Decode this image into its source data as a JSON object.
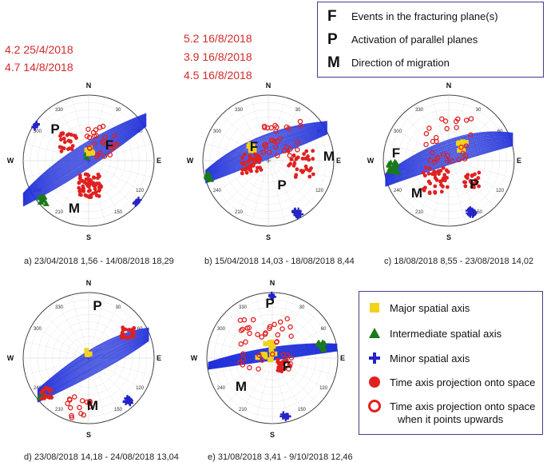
{
  "events": {
    "group1": [
      "4.2 25/4/2018",
      "4.7 14/8/2018"
    ],
    "group2": [
      "5.2 16/8/2018",
      "3.9 16/8/2018",
      "4.5 16/8/2018"
    ]
  },
  "key_legend": [
    {
      "key": "F",
      "text": "Events in the fracturing plane(s)"
    },
    {
      "key": "P",
      "text": "Activation of parallel planes"
    },
    {
      "key": "M",
      "text": "Direction of migration"
    }
  ],
  "symbol_legend": [
    {
      "text": "Major spatial axis",
      "color": "#f2d21c"
    },
    {
      "text": "Intermediate spatial axis",
      "color": "#1a7a1a"
    },
    {
      "text": "Minor spatial axis",
      "color": "#2424c8"
    },
    {
      "text": "Time axis projection onto space",
      "color": "#e02020"
    },
    {
      "text": "Time axis projection onto space",
      "text2": "when it points upwards",
      "color": "#e02020"
    }
  ],
  "compass": {
    "n": "N",
    "s": "S",
    "e": "E",
    "w": "W"
  },
  "degree_ticks": [
    "30",
    "60",
    "120",
    "150",
    "210",
    "240",
    "300",
    "330"
  ],
  "colors": {
    "fracture_planes": "#1f2fd8",
    "legend_border": "#4a3a8a",
    "event_text": "#d42a2a"
  },
  "panels": [
    {
      "id": "a",
      "caption": "a) 23/04/2018 1,56 - 14/08/2018 18,29",
      "labels": [
        {
          "t": "P"
        },
        {
          "t": "F"
        },
        {
          "t": "M"
        }
      ]
    },
    {
      "id": "b",
      "caption": "b) 15/04/2018 14,03 - 18/08/2018 8,44",
      "labels": [
        {
          "t": "F"
        },
        {
          "t": "M"
        },
        {
          "t": "P"
        }
      ]
    },
    {
      "id": "c",
      "caption": "c) 18/08/2018 8,55 - 23/08/2018 14,02",
      "labels": [
        {
          "t": "F"
        },
        {
          "t": "M"
        },
        {
          "t": "P"
        }
      ]
    },
    {
      "id": "d",
      "caption": "d) 23/08/2018 14,18 - 24/08/2018 13,04",
      "labels": [
        {
          "t": "P"
        },
        {
          "t": "M"
        }
      ]
    },
    {
      "id": "e",
      "caption": "e) 31/08/2018 3,41 - 9/10/2018 12,46",
      "labels": [
        {
          "t": "P"
        },
        {
          "t": "F"
        },
        {
          "t": "M"
        }
      ]
    }
  ]
}
